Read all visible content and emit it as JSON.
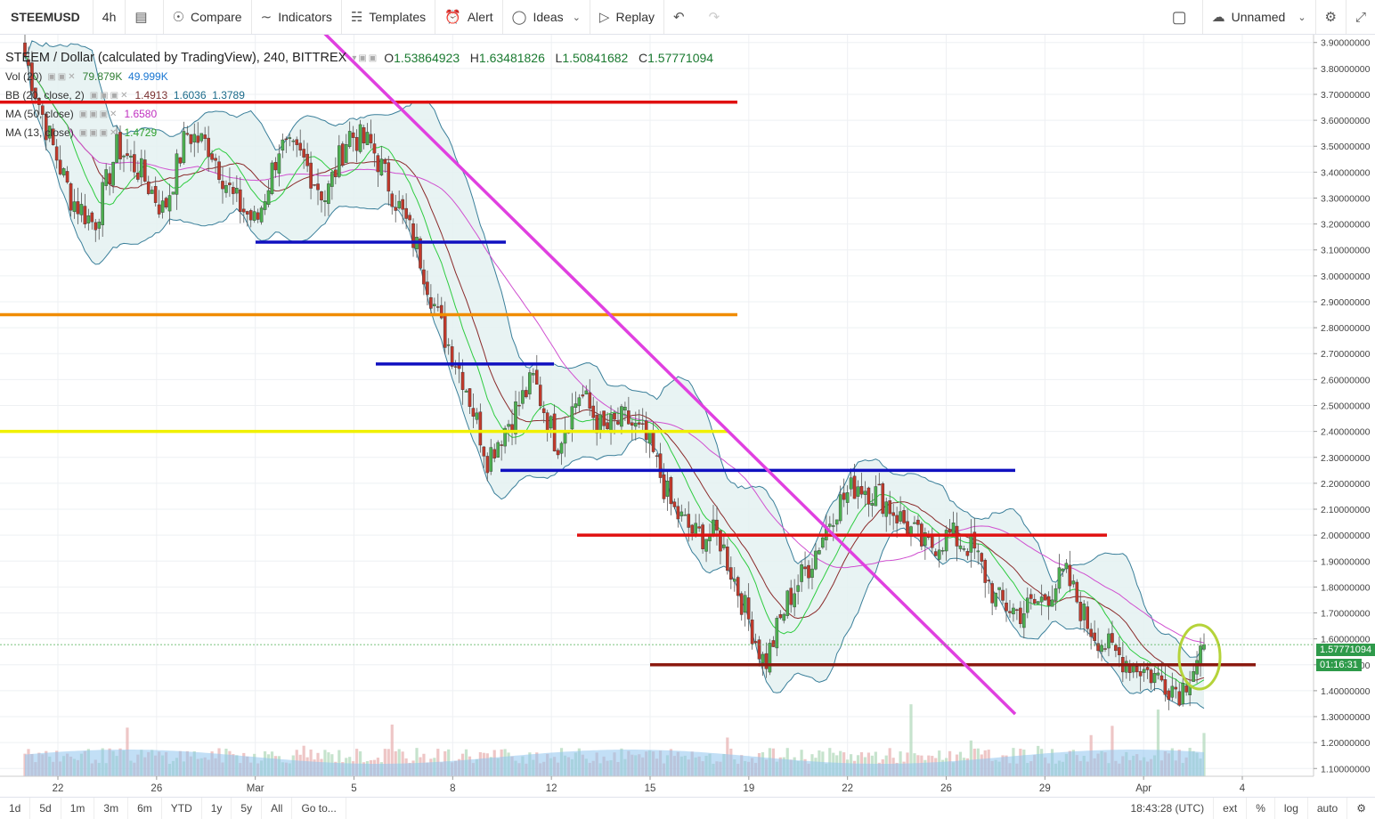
{
  "toolbar": {
    "symbol": "STEEMUSD",
    "interval": "4h",
    "compare": "Compare",
    "indicators": "Indicators",
    "templates": "Templates",
    "alert": "Alert",
    "ideas": "Ideas",
    "replay": "Replay",
    "layout_name": "Unnamed"
  },
  "legend": {
    "title": "STEEM / Dollar (calculated by TradingView), 240, BITTREX",
    "ohlc": {
      "o_label": "O",
      "o": "1.53864923",
      "h_label": "H",
      "h": "1.63481826",
      "l_label": "L",
      "l": "1.50841682",
      "c_label": "C",
      "c": "1.57771094"
    },
    "vol": {
      "name": "Vol (20)",
      "v1": "79.879K",
      "v2": "49.999K"
    },
    "bb": {
      "name": "BB (20, close, 2)",
      "v1": "1.4913",
      "v2": "1.6036",
      "v3": "1.3789"
    },
    "ma50": {
      "name": "MA (50, close)",
      "v": "1.6580"
    },
    "ma13": {
      "name": "MA (13, close)",
      "v": "1.4729"
    }
  },
  "price_axis": {
    "ticks": [
      "3.90000000",
      "3.80000000",
      "3.70000000",
      "3.60000000",
      "3.50000000",
      "3.40000000",
      "3.30000000",
      "3.20000000",
      "3.10000000",
      "3.00000000",
      "2.90000000",
      "2.80000000",
      "2.70000000",
      "2.60000000",
      "2.50000000",
      "2.40000000",
      "2.30000000",
      "2.20000000",
      "2.10000000",
      "2.00000000",
      "1.90000000",
      "1.80000000",
      "1.70000000",
      "1.60000000",
      "1.50000000",
      "1.40000000",
      "1.30000000",
      "1.20000000",
      "1.10000000"
    ],
    "last_price": "1.57771094",
    "countdown": "01:16:31"
  },
  "time_axis": [
    "22",
    "26",
    "Mar",
    "5",
    "8",
    "12",
    "15",
    "19",
    "22",
    "26",
    "29",
    "Apr",
    "4"
  ],
  "bottom": {
    "ranges": [
      "1d",
      "5d",
      "1m",
      "3m",
      "6m",
      "YTD",
      "1y",
      "5y",
      "All"
    ],
    "goto": "Go to...",
    "clock": "18:43:28 (UTC)",
    "ext": "ext",
    "pct": "%",
    "log": "log",
    "auto": "auto"
  },
  "colors": {
    "up": "#4caf50",
    "down": "#c0392b",
    "bb_fill": "#e4f1f1",
    "bb_line": "#3a7f9a",
    "ma50": "#d050d0",
    "ma13": "#2ecc40",
    "volume": "#8fc5ee",
    "trend_magenta": "#e040e0"
  },
  "chart_data": {
    "type": "candlestick",
    "price_range": [
      1.07,
      3.93
    ],
    "time_labels": [
      "22",
      "26",
      "Mar",
      "5",
      "8",
      "12",
      "15",
      "19",
      "22",
      "26",
      "29",
      "Apr",
      "4"
    ],
    "last_close": 1.57771094,
    "horizontal_levels": [
      {
        "price": 3.67,
        "color": "#e01010"
      },
      {
        "price": 3.13,
        "color": "#1010c0"
      },
      {
        "price": 2.85,
        "color": "#f08c00"
      },
      {
        "price": 2.66,
        "color": "#1010c0"
      },
      {
        "price": 2.4,
        "color": "#f0f000"
      },
      {
        "price": 2.25,
        "color": "#1010c0"
      },
      {
        "price": 2.0,
        "color": "#e01010"
      },
      {
        "price": 1.5,
        "color": "#8b1a10"
      }
    ],
    "trend_line": {
      "from_price": 3.95,
      "to_price": 1.31,
      "color": "#e040e0"
    },
    "close_path": [
      3.85,
      3.55,
      3.3,
      3.2,
      3.5,
      3.4,
      3.25,
      3.55,
      3.5,
      3.3,
      3.2,
      3.5,
      3.45,
      3.3,
      3.55,
      3.5,
      3.3,
      3.1,
      2.8,
      2.6,
      2.3,
      2.45,
      2.6,
      2.35,
      2.55,
      2.4,
      2.45,
      2.35,
      2.1,
      2.0,
      2.0,
      1.75,
      1.5,
      1.75,
      1.9,
      2.1,
      2.2,
      2.15,
      2.05,
      1.95,
      2.0,
      1.95,
      1.75,
      1.7,
      1.75,
      1.85,
      1.65,
      1.55,
      1.5,
      1.45,
      1.4,
      1.58
    ]
  }
}
